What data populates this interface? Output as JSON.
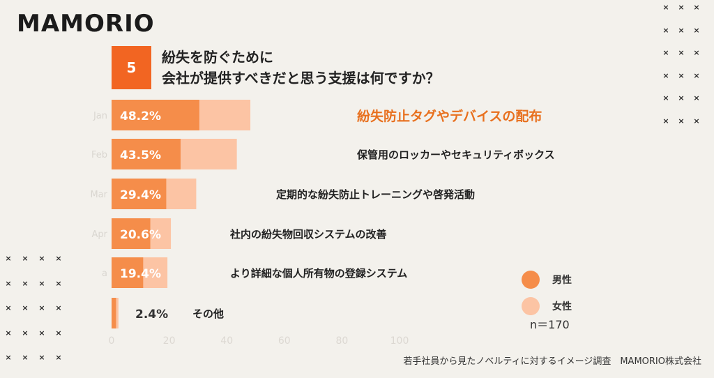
{
  "brand": {
    "logo": "MAMORIO"
  },
  "question": {
    "number": "5",
    "line1": "紛失を防ぐために",
    "line2": "会社が提供すべきだと思う支援は何ですか？"
  },
  "chart_data": {
    "type": "bar",
    "orientation": "horizontal",
    "stacked": true,
    "xlim": [
      0,
      100
    ],
    "x_ticks": [
      "0",
      "20",
      "40",
      "60",
      "80",
      "100"
    ],
    "y_ticks_faded": [
      "Jan",
      "Feb",
      "Mar",
      "Apr",
      "a",
      ""
    ],
    "categories": [
      "紛失防止タグやデバイスの配布",
      "保管用のロッカーやセキュリティボックス",
      "定期的な紛失防止トレーニングや啓発活動",
      "社内の紛失物回収システムの改善",
      "より詳細な個人所有物の登録システム",
      "その他"
    ],
    "totals": [
      "48.2%",
      "43.5%",
      "29.4%",
      "20.6%",
      "19.4%",
      "2.4%"
    ],
    "highlight_index": 0,
    "series": [
      {
        "name": "男性",
        "color": "#f58d4a",
        "values": [
          30.5,
          24.0,
          19.0,
          13.5,
          11.0,
          1.6
        ]
      },
      {
        "name": "女性",
        "color": "#fcc4a4",
        "values": [
          17.7,
          19.5,
          10.4,
          7.1,
          8.4,
          0.8
        ]
      }
    ],
    "n_label": "n＝170"
  },
  "legend": [
    {
      "label": "男性",
      "color": "#f58d4a"
    },
    {
      "label": "女性",
      "color": "#fcc4a4"
    }
  ],
  "colors": {
    "accent": "#f26522",
    "male": "#f58d4a",
    "female": "#fcc4a4",
    "highlight_text": "#e8701e"
  },
  "footer": "若手社員から見たノベルティに対するイメージ調査　MAMORIO株式会社"
}
